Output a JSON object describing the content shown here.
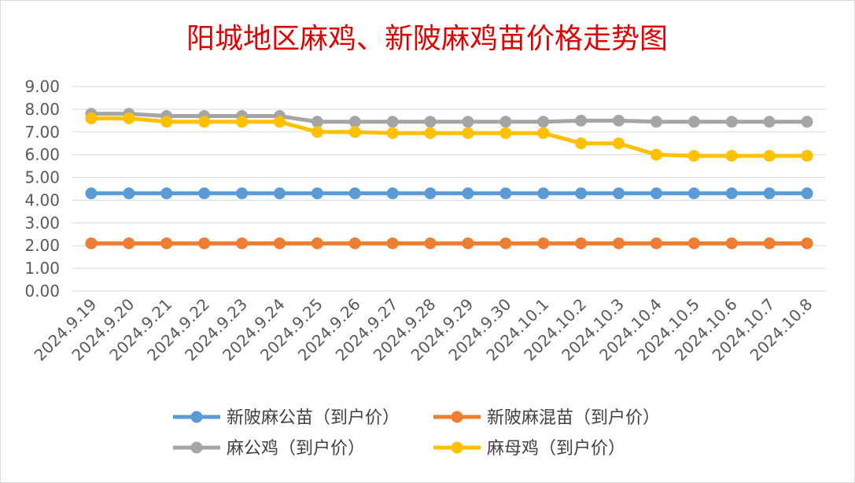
{
  "chart_data": {
    "type": "line",
    "title": "阳城地区麻鸡、新陂麻鸡苗价格走势图",
    "xlabel": "",
    "ylabel": "",
    "ylim": [
      0,
      9
    ],
    "yticks": [
      "0.00",
      "1.00",
      "2.00",
      "3.00",
      "4.00",
      "5.00",
      "6.00",
      "7.00",
      "8.00",
      "9.00"
    ],
    "grid": true,
    "legend_position": "bottom",
    "categories": [
      "2024.9.19",
      "2024.9.20",
      "2024.9.21",
      "2024.9.22",
      "2024.9.23",
      "2024.9.24",
      "2024.9.25",
      "2024.9.26",
      "2024.9.27",
      "2024.9.28",
      "2024.9.29",
      "2024.9.30",
      "2024.10.1",
      "2024.10.2",
      "2024.10.3",
      "2024.10.4",
      "2024.10.5",
      "2024.10.6",
      "2024.10.7",
      "2024.10.8"
    ],
    "series": [
      {
        "name": "新陂麻公苗（到户价）",
        "color": "#5b9bd5",
        "values": [
          4.3,
          4.3,
          4.3,
          4.3,
          4.3,
          4.3,
          4.3,
          4.3,
          4.3,
          4.3,
          4.3,
          4.3,
          4.3,
          4.3,
          4.3,
          4.3,
          4.3,
          4.3,
          4.3,
          4.3
        ]
      },
      {
        "name": "新陂麻混苗（到户价）",
        "color": "#ed7d31",
        "values": [
          2.1,
          2.1,
          2.1,
          2.1,
          2.1,
          2.1,
          2.1,
          2.1,
          2.1,
          2.1,
          2.1,
          2.1,
          2.1,
          2.1,
          2.1,
          2.1,
          2.1,
          2.1,
          2.1,
          2.1
        ]
      },
      {
        "name": "麻公鸡（到户价）",
        "color": "#a5a5a5",
        "values": [
          7.8,
          7.8,
          7.7,
          7.7,
          7.7,
          7.7,
          7.45,
          7.45,
          7.45,
          7.45,
          7.45,
          7.45,
          7.45,
          7.5,
          7.5,
          7.45,
          7.45,
          7.45,
          7.45,
          7.45
        ]
      },
      {
        "name": "麻母鸡（到户价）",
        "color": "#ffc000",
        "values": [
          7.6,
          7.6,
          7.45,
          7.45,
          7.45,
          7.45,
          7.0,
          7.0,
          6.95,
          6.95,
          6.95,
          6.95,
          6.95,
          6.5,
          6.5,
          6.0,
          5.95,
          5.95,
          5.95,
          5.95
        ]
      }
    ]
  }
}
